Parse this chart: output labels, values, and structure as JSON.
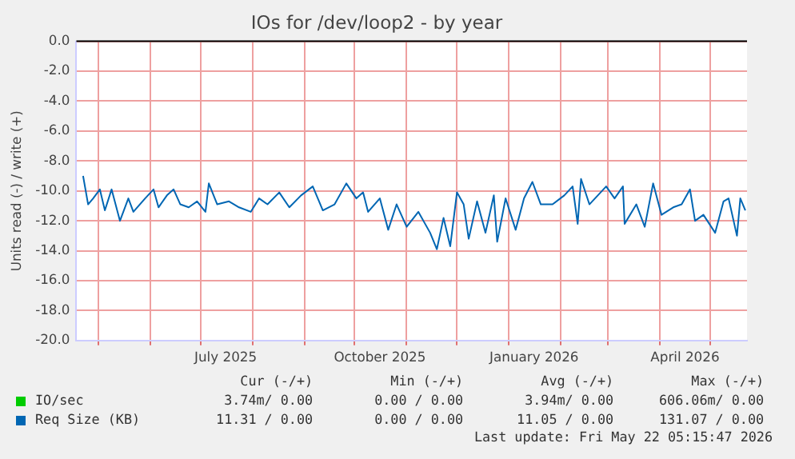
{
  "chart_data": {
    "type": "line",
    "title": "IOs for /dev/loop2 - by year",
    "ylabel": "Units read (-) / write (+)",
    "xlim": [
      "2025-04-18",
      "2026-05-23"
    ],
    "xticks": [
      {
        "value": "2025-05-01",
        "label": null
      },
      {
        "value": "2025-06-01",
        "label": null
      },
      {
        "value": "2025-07-01",
        "label": null
      },
      {
        "value": "2025-07-16",
        "label": "July 2025"
      },
      {
        "value": "2025-08-01",
        "label": null
      },
      {
        "value": "2025-09-01",
        "label": null
      },
      {
        "value": "2025-10-01",
        "label": null
      },
      {
        "value": "2025-10-16",
        "label": "October 2025"
      },
      {
        "value": "2025-11-01",
        "label": null
      },
      {
        "value": "2025-12-01",
        "label": null
      },
      {
        "value": "2026-01-01",
        "label": null
      },
      {
        "value": "2026-01-16",
        "label": "January 2026"
      },
      {
        "value": "2026-02-01",
        "label": null
      },
      {
        "value": "2026-03-01",
        "label": null
      },
      {
        "value": "2026-04-01",
        "label": null
      },
      {
        "value": "2026-04-16",
        "label": "April 2026"
      },
      {
        "value": "2026-05-01",
        "label": null
      }
    ],
    "ylim": [
      -20,
      0
    ],
    "yticks": [
      {
        "value": -20,
        "label": "-20.0"
      },
      {
        "value": -18,
        "label": "-18.0"
      },
      {
        "value": -16,
        "label": "-16.0"
      },
      {
        "value": -14,
        "label": "-14.0"
      },
      {
        "value": -12,
        "label": "-12.0"
      },
      {
        "value": -10,
        "label": "-10.0"
      },
      {
        "value": -8,
        "label": "-8.0"
      },
      {
        "value": -6,
        "label": "-6.0"
      },
      {
        "value": -4,
        "label": "-4.0"
      },
      {
        "value": -2,
        "label": "-2.0"
      },
      {
        "value": 0,
        "label": "0.0"
      }
    ],
    "grid": true,
    "legend": "bottom",
    "marker": "none",
    "line_style": "solid",
    "ref_lines": [
      {
        "axis": "y",
        "value": 0,
        "color": "#000000"
      }
    ],
    "series": [
      {
        "name": "IO/sec",
        "color": "#00cc00"
      },
      {
        "name": "Req Size (KB)",
        "color": "#0066b3",
        "x": [
          "2025-04-22",
          "2025-04-25",
          "2025-04-28",
          "2025-05-02",
          "2025-05-05",
          "2025-05-09",
          "2025-05-14",
          "2025-05-19",
          "2025-05-22",
          "2025-05-29",
          "2025-06-03",
          "2025-06-06",
          "2025-06-11",
          "2025-06-15",
          "2025-06-19",
          "2025-06-24",
          "2025-06-29",
          "2025-07-04",
          "2025-07-06",
          "2025-07-11",
          "2025-07-18",
          "2025-07-24",
          "2025-07-31",
          "2025-08-05",
          "2025-08-10",
          "2025-08-17",
          "2025-08-23",
          "2025-08-30",
          "2025-09-06",
          "2025-09-12",
          "2025-09-19",
          "2025-09-26",
          "2025-10-02",
          "2025-10-06",
          "2025-10-09",
          "2025-10-16",
          "2025-10-21",
          "2025-10-26",
          "2025-11-01",
          "2025-11-08",
          "2025-11-15",
          "2025-11-19",
          "2025-11-23",
          "2025-11-27",
          "2025-12-01",
          "2025-12-05",
          "2025-12-08",
          "2025-12-13",
          "2025-12-18",
          "2025-12-23",
          "2025-12-25",
          "2025-12-30",
          "2026-01-05",
          "2026-01-10",
          "2026-01-15",
          "2026-01-20",
          "2026-01-27",
          "2026-02-03",
          "2026-02-08",
          "2026-02-11",
          "2026-02-13",
          "2026-02-18",
          "2026-02-23",
          "2026-02-28",
          "2026-03-05",
          "2026-03-10",
          "2026-03-11",
          "2026-03-18",
          "2026-03-23",
          "2026-03-28",
          "2026-04-02",
          "2026-04-09",
          "2026-04-14",
          "2026-04-19",
          "2026-04-22",
          "2026-04-27",
          "2026-05-04",
          "2026-05-09",
          "2026-05-12",
          "2026-05-17",
          "2026-05-19",
          "2026-05-22"
        ],
        "values": [
          -9.0,
          -10.9,
          -10.5,
          -9.9,
          -11.3,
          -9.9,
          -12.0,
          -10.5,
          -11.4,
          -10.5,
          -9.9,
          -11.1,
          -10.3,
          -9.9,
          -10.9,
          -11.1,
          -10.7,
          -11.4,
          -9.5,
          -10.9,
          -10.7,
          -11.1,
          -11.4,
          -10.5,
          -10.9,
          -10.1,
          -11.1,
          -10.3,
          -9.7,
          -11.3,
          -10.9,
          -9.5,
          -10.5,
          -10.1,
          -11.4,
          -10.5,
          -12.6,
          -10.9,
          -12.4,
          -11.4,
          -12.8,
          -13.9,
          -11.8,
          -13.7,
          -10.1,
          -10.9,
          -13.2,
          -10.7,
          -12.8,
          -10.3,
          -13.4,
          -10.5,
          -12.6,
          -10.5,
          -9.4,
          -10.9,
          -10.9,
          -10.3,
          -9.7,
          -12.2,
          -9.2,
          -10.9,
          -10.3,
          -9.7,
          -10.5,
          -9.7,
          -12.2,
          -10.9,
          -12.4,
          -9.5,
          -11.6,
          -11.1,
          -10.9,
          -9.9,
          -12.0,
          -11.6,
          -12.8,
          -10.7,
          -10.5,
          -13.0,
          -10.5,
          -11.3
        ]
      }
    ],
    "annotations": [
      "Cur (-/+)",
      "Min (-/+)",
      "Avg (-/+)",
      "Max (-/+)",
      "3.74m/ 0.00",
      "0.00 / 0.00",
      "3.94m/ 0.00",
      "606.06m/ 0.00",
      "11.31 / 0.00",
      "0.00 / 0.00",
      "11.05 / 0.00",
      "131.07 / 0.00",
      "Last update: Fri May 22 05:15:47 2026"
    ]
  }
}
